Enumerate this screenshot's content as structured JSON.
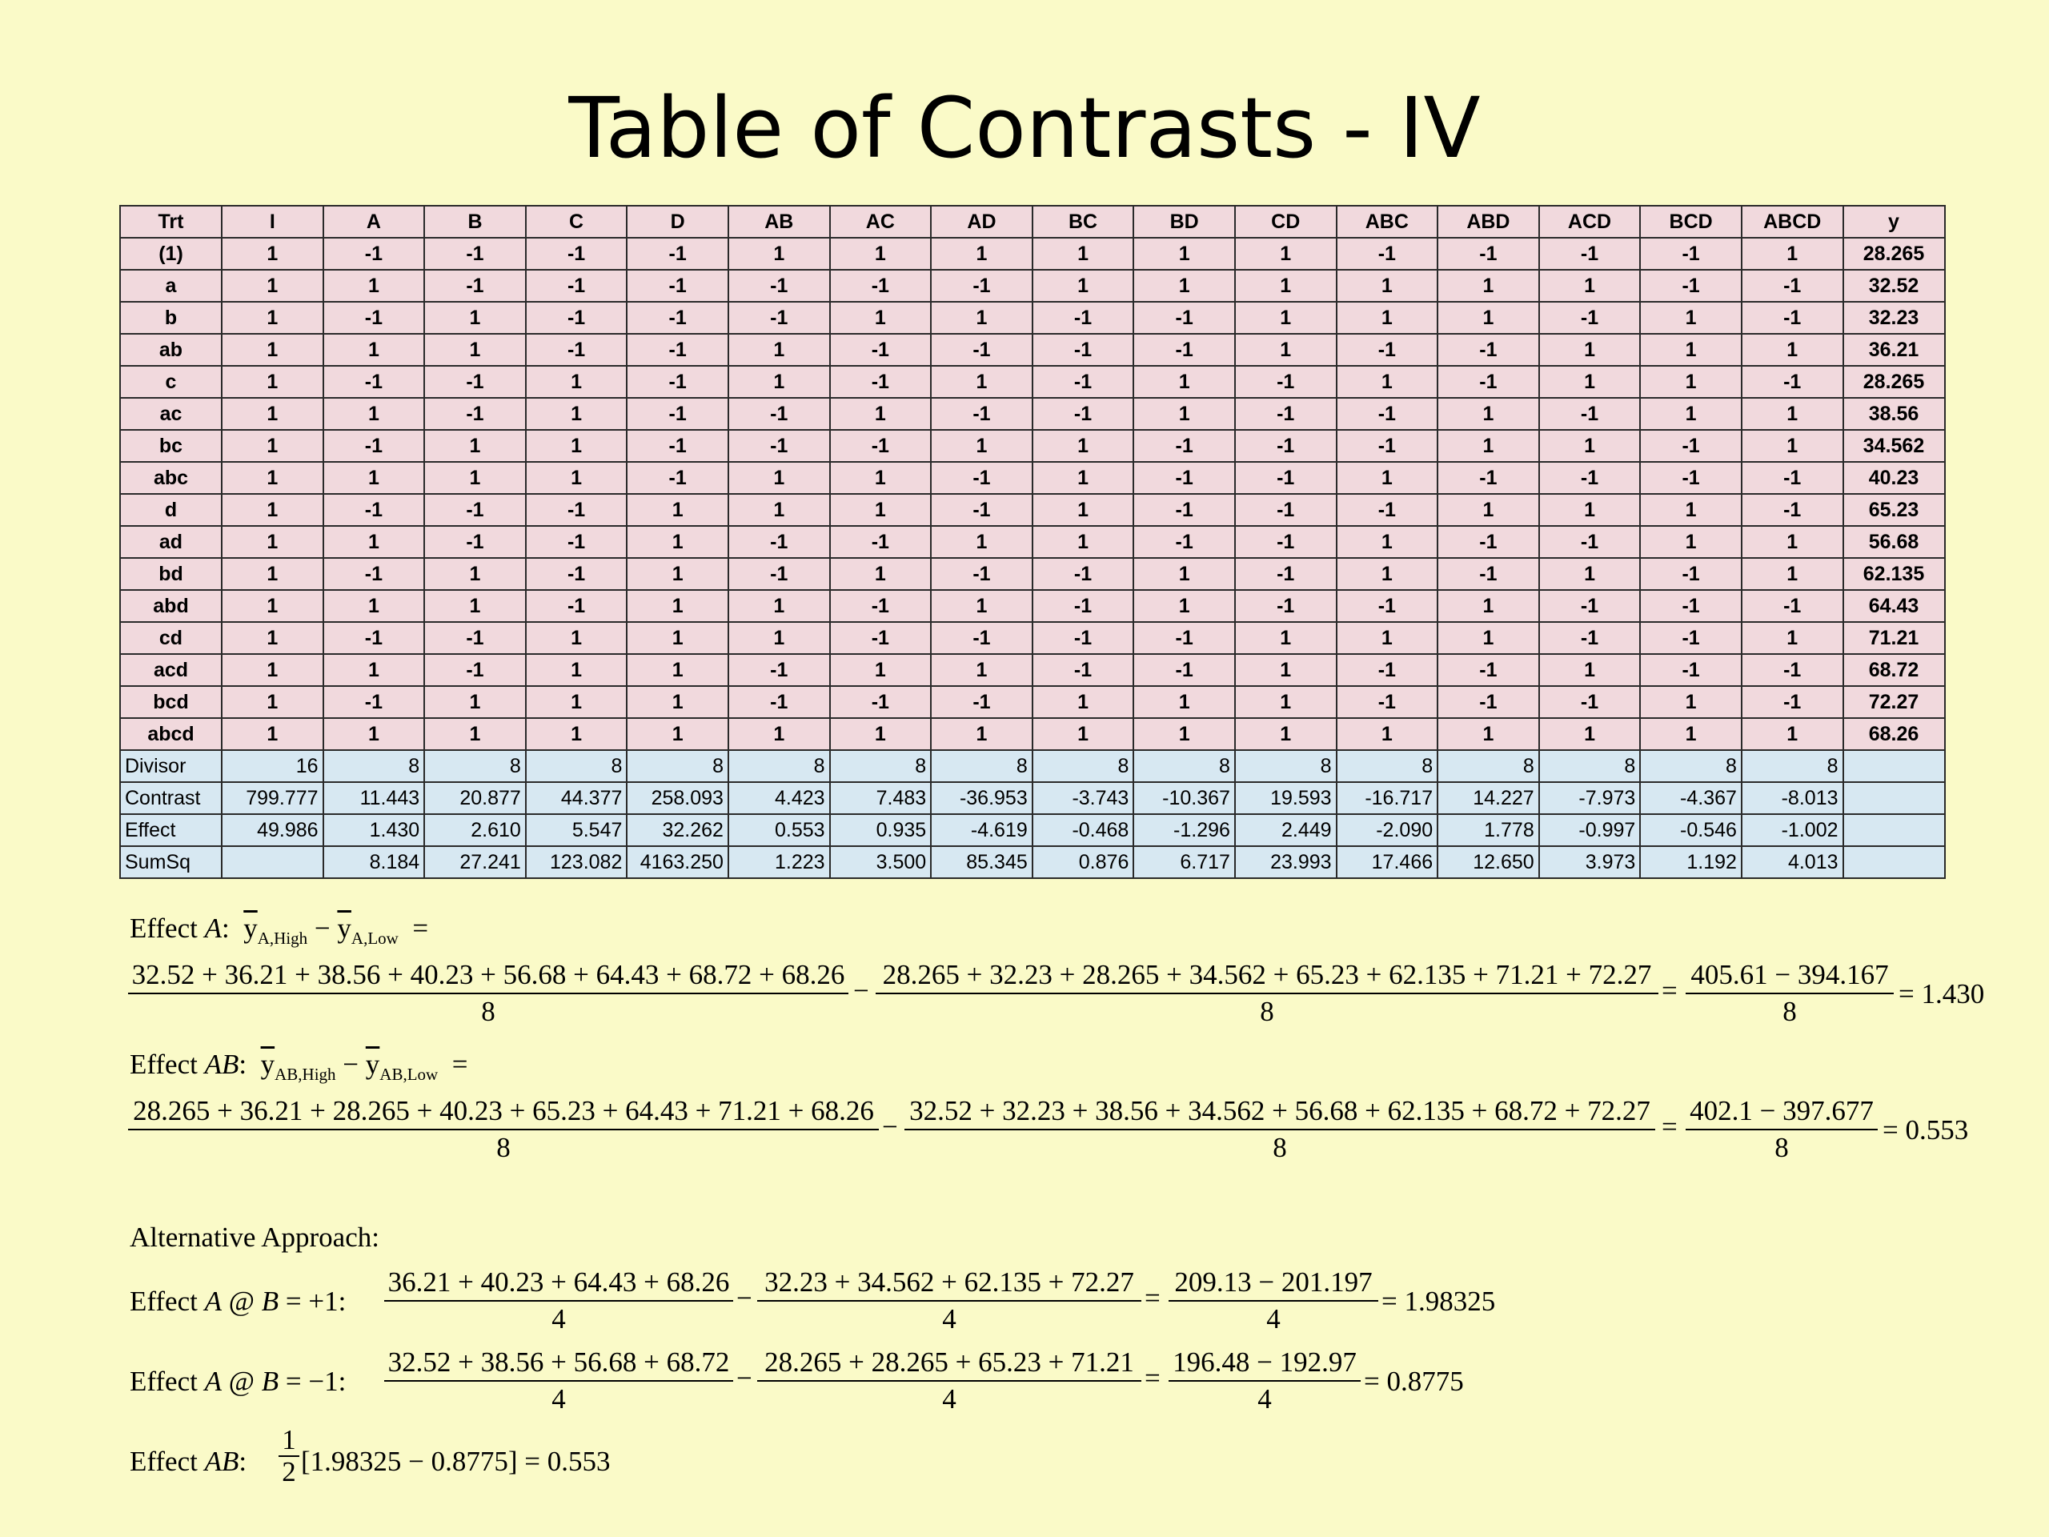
{
  "title": "Table of Contrasts - IV",
  "table": {
    "headers": [
      "Trt",
      "I",
      "A",
      "B",
      "C",
      "D",
      "AB",
      "AC",
      "AD",
      "BC",
      "BD",
      "CD",
      "ABC",
      "ABD",
      "ACD",
      "BCD",
      "ABCD",
      "y"
    ],
    "rows": [
      [
        "(1)",
        "1",
        "-1",
        "-1",
        "-1",
        "-1",
        "1",
        "1",
        "1",
        "1",
        "1",
        "1",
        "-1",
        "-1",
        "-1",
        "-1",
        "1",
        "28.265"
      ],
      [
        "a",
        "1",
        "1",
        "-1",
        "-1",
        "-1",
        "-1",
        "-1",
        "-1",
        "1",
        "1",
        "1",
        "1",
        "1",
        "1",
        "-1",
        "-1",
        "32.52"
      ],
      [
        "b",
        "1",
        "-1",
        "1",
        "-1",
        "-1",
        "-1",
        "1",
        "1",
        "-1",
        "-1",
        "1",
        "1",
        "1",
        "-1",
        "1",
        "-1",
        "32.23"
      ],
      [
        "ab",
        "1",
        "1",
        "1",
        "-1",
        "-1",
        "1",
        "-1",
        "-1",
        "-1",
        "-1",
        "1",
        "-1",
        "-1",
        "1",
        "1",
        "1",
        "36.21"
      ],
      [
        "c",
        "1",
        "-1",
        "-1",
        "1",
        "-1",
        "1",
        "-1",
        "1",
        "-1",
        "1",
        "-1",
        "1",
        "-1",
        "1",
        "1",
        "-1",
        "28.265"
      ],
      [
        "ac",
        "1",
        "1",
        "-1",
        "1",
        "-1",
        "-1",
        "1",
        "-1",
        "-1",
        "1",
        "-1",
        "-1",
        "1",
        "-1",
        "1",
        "1",
        "38.56"
      ],
      [
        "bc",
        "1",
        "-1",
        "1",
        "1",
        "-1",
        "-1",
        "-1",
        "1",
        "1",
        "-1",
        "-1",
        "-1",
        "1",
        "1",
        "-1",
        "1",
        "34.562"
      ],
      [
        "abc",
        "1",
        "1",
        "1",
        "1",
        "-1",
        "1",
        "1",
        "-1",
        "1",
        "-1",
        "-1",
        "1",
        "-1",
        "-1",
        "-1",
        "-1",
        "40.23"
      ],
      [
        "d",
        "1",
        "-1",
        "-1",
        "-1",
        "1",
        "1",
        "1",
        "-1",
        "1",
        "-1",
        "-1",
        "-1",
        "1",
        "1",
        "1",
        "-1",
        "65.23"
      ],
      [
        "ad",
        "1",
        "1",
        "-1",
        "-1",
        "1",
        "-1",
        "-1",
        "1",
        "1",
        "-1",
        "-1",
        "1",
        "-1",
        "-1",
        "1",
        "1",
        "56.68"
      ],
      [
        "bd",
        "1",
        "-1",
        "1",
        "-1",
        "1",
        "-1",
        "1",
        "-1",
        "-1",
        "1",
        "-1",
        "1",
        "-1",
        "1",
        "-1",
        "1",
        "62.135"
      ],
      [
        "abd",
        "1",
        "1",
        "1",
        "-1",
        "1",
        "1",
        "-1",
        "1",
        "-1",
        "1",
        "-1",
        "-1",
        "1",
        "-1",
        "-1",
        "-1",
        "64.43"
      ],
      [
        "cd",
        "1",
        "-1",
        "-1",
        "1",
        "1",
        "1",
        "-1",
        "-1",
        "-1",
        "-1",
        "1",
        "1",
        "1",
        "-1",
        "-1",
        "1",
        "71.21"
      ],
      [
        "acd",
        "1",
        "1",
        "-1",
        "1",
        "1",
        "-1",
        "1",
        "1",
        "-1",
        "-1",
        "1",
        "-1",
        "-1",
        "1",
        "-1",
        "-1",
        "68.72"
      ],
      [
        "bcd",
        "1",
        "-1",
        "1",
        "1",
        "1",
        "-1",
        "-1",
        "-1",
        "1",
        "1",
        "1",
        "-1",
        "-1",
        "-1",
        "1",
        "-1",
        "72.27"
      ],
      [
        "abcd",
        "1",
        "1",
        "1",
        "1",
        "1",
        "1",
        "1",
        "1",
        "1",
        "1",
        "1",
        "1",
        "1",
        "1",
        "1",
        "1",
        "68.26"
      ]
    ],
    "summary": [
      [
        "Divisor",
        "16",
        "8",
        "8",
        "8",
        "8",
        "8",
        "8",
        "8",
        "8",
        "8",
        "8",
        "8",
        "8",
        "8",
        "8",
        "8",
        ""
      ],
      [
        "Contrast",
        "799.777",
        "11.443",
        "20.877",
        "44.377",
        "258.093",
        "4.423",
        "7.483",
        "-36.953",
        "-3.743",
        "-10.367",
        "19.593",
        "-16.717",
        "14.227",
        "-7.973",
        "-4.367",
        "-8.013",
        ""
      ],
      [
        "Effect",
        "49.986",
        "1.430",
        "2.610",
        "5.547",
        "32.262",
        "0.553",
        "0.935",
        "-4.619",
        "-0.468",
        "-1.296",
        "2.449",
        "-2.090",
        "1.778",
        "-0.997",
        "-0.546",
        "-1.002",
        ""
      ],
      [
        "SumSq",
        "",
        "8.184",
        "27.241",
        "123.082",
        "4163.250",
        "1.223",
        "3.500",
        "85.345",
        "0.876",
        "6.717",
        "23.993",
        "17.466",
        "12.650",
        "3.973",
        "1.192",
        "4.013",
        ""
      ]
    ]
  },
  "formulas": {
    "effectA_label": "Effect ",
    "effectA_var": "A",
    "effectA_tail": ":",
    "ybar": "y",
    "subA_high": "A,High",
    "subA_low": "A,Low",
    "minus": "−",
    "equals": "=",
    "effA_num1": "32.52 + 36.21 + 38.56 + 40.23 + 56.68 + 64.43 + 68.72 + 68.26",
    "effA_num2": "28.265 + 32.23 + 28.265 + 34.562 + 65.23 + 62.135 + 71.21 + 72.27",
    "effA_num3": "405.61 − 394.167",
    "den8": "8",
    "den4": "4",
    "effA_result": "= 1.430",
    "effectAB_var": "AB",
    "subAB_high": "AB,High",
    "subAB_low": "AB,Low",
    "effAB_num1": "28.265 + 36.21 + 28.265 + 40.23 + 65.23 + 64.43 + 71.21 + 68.26",
    "effAB_num2": "32.52 + 32.23 + 38.56 + 34.562 + 56.68 + 62.135 + 68.72 + 72.27",
    "effAB_num3": "402.1 − 397.677",
    "effAB_result": "= 0.553",
    "alt_label": "Alternative Approach:",
    "altA1_label": "Effect ",
    "altA1_var": "A",
    "altA1_cond": " @ ",
    "altA1_B": "B",
    "altA1_val": " = +1:",
    "altA1_num1": "36.21 + 40.23 + 64.43 + 68.26",
    "altA1_num2": "32.23 + 34.562 + 62.135 + 72.27",
    "altA1_num3": "209.13 − 201.197",
    "altA1_result": "= 1.98325",
    "altA2_val": " = −1:",
    "altA2_num1": "32.52 + 38.56 + 56.68 + 68.72",
    "altA2_num2": "28.265 + 28.265 + 65.23 + 71.21",
    "altA2_num3": "196.48 − 192.97",
    "altA2_result": "= 0.8775",
    "altAB_label": "Effect ",
    "altAB_var": "AB",
    "altAB_half_num": "1",
    "altAB_half_den": "2",
    "altAB_expr": "[1.98325 − 0.8775] = 0.553"
  }
}
